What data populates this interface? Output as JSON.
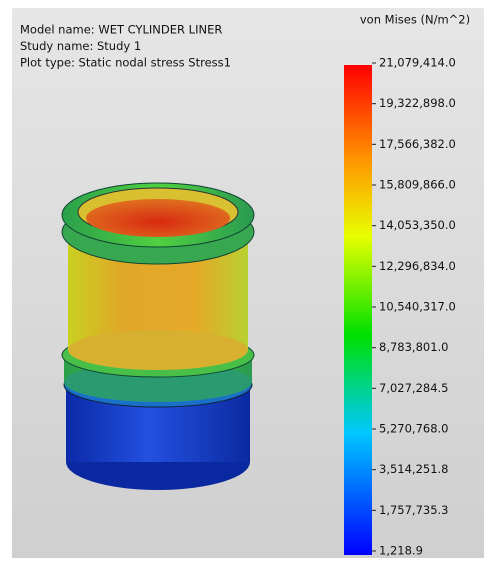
{
  "header": {
    "lines": [
      "Model name: WET CYLINDER LINER",
      "Study name: Study 1",
      "Plot type: Static nodal stress Stress1"
    ]
  },
  "legend": {
    "title": "von Mises (N/m^2)",
    "labels": [
      "21,079,414.0",
      "19,322,898.0",
      "17,566,382.0",
      "15,809,866.0",
      "14,053,350.0",
      "12,296,834.0",
      "10,540,317.0",
      "8,783,801.0",
      "7,027,284.5",
      "5,270,768.0",
      "3,514,251.8",
      "1,757,735.3",
      "1,218.9"
    ]
  }
}
